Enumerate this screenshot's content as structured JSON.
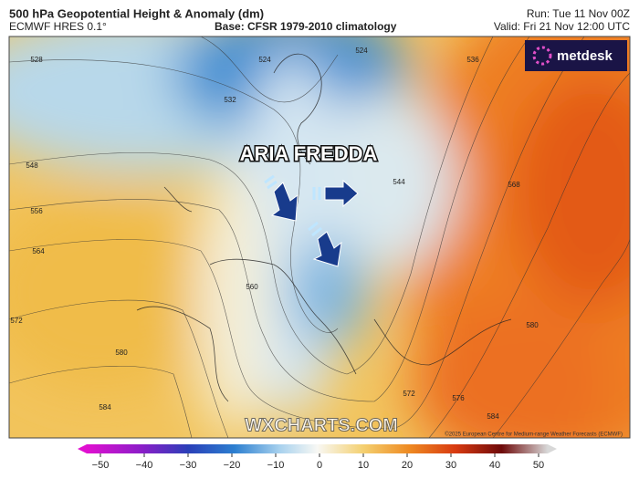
{
  "header": {
    "title": "500 hPa Geopotential Height & Anomaly (dm)",
    "model": "ECMWF HRES 0.1°",
    "base": "Base: CFSR 1979-2010 climatology",
    "run": "Run: Tue 11 Nov 00Z",
    "valid": "Valid: Fri 21 Nov 12:00 UTC",
    "logo": "metdesk"
  },
  "map": {
    "annotation": "ARIA FREDDA",
    "watermark": "WXCHARTS.COM",
    "copyright": "©2025 European Centre for Medium-range Weather Forecasts (ECMWF)",
    "contour_labels": [
      528,
      524,
      532,
      524,
      536,
      548,
      556,
      564,
      572,
      580,
      584,
      560,
      544,
      568,
      572,
      576,
      584,
      580
    ]
  },
  "colorbar": {
    "ticks": [
      {
        "value": -50,
        "label": "−50"
      },
      {
        "value": -40,
        "label": "−40"
      },
      {
        "value": -30,
        "label": "−30"
      },
      {
        "value": -20,
        "label": "−20"
      },
      {
        "value": -10,
        "label": "−10"
      },
      0,
      10,
      20,
      30,
      40,
      50
    ]
  }
}
